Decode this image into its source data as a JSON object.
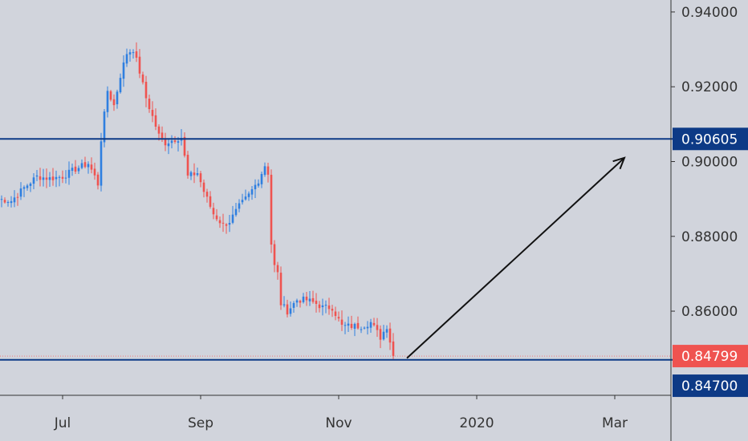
{
  "chart_data": {
    "type": "candlestick",
    "title": "",
    "x_ticks": [
      "Jul",
      "Sep",
      "Nov",
      "2020",
      "Mar"
    ],
    "y_ticks": [
      "0.94000",
      "0.92000",
      "0.90000",
      "0.88000",
      "0.86000"
    ],
    "ylim": [
      0.8375,
      0.9432
    ],
    "x_tick_candle_index": [
      20,
      63,
      106,
      149,
      192
    ],
    "grid": false,
    "colors": {
      "background": "#d1d4dc",
      "up": "#2f7fe0",
      "down": "#ef5350",
      "level_line": "#0d3a86",
      "current_price_line": "#ef7a78",
      "axis_text": "#333333",
      "arrow": "#111111"
    },
    "levels": [
      {
        "value": 0.90605,
        "label": "0.90605",
        "color": "#0d3a86"
      },
      {
        "value": 0.847,
        "label": "0.84700",
        "color": "#0d3a86"
      }
    ],
    "current_price": {
      "value": 0.84799,
      "label": "0.84799",
      "color": "#ef5350"
    },
    "arrow": {
      "from": {
        "candle_index": 126,
        "price": 0.847
      },
      "to": {
        "candle_index": 160,
        "price": 0.901
      }
    },
    "anchors": [
      [
        0,
        0.89
      ],
      [
        4,
        0.8895
      ],
      [
        8,
        0.893
      ],
      [
        12,
        0.896
      ],
      [
        16,
        0.8955
      ],
      [
        20,
        0.896
      ],
      [
        24,
        0.898
      ],
      [
        28,
        0.8995
      ],
      [
        30,
        0.896
      ],
      [
        31,
        0.894
      ],
      [
        32,
        0.906
      ],
      [
        34,
        0.919
      ],
      [
        36,
        0.915
      ],
      [
        38,
        0.923
      ],
      [
        40,
        0.929
      ],
      [
        42,
        0.93
      ],
      [
        44,
        0.924
      ],
      [
        46,
        0.917
      ],
      [
        48,
        0.912
      ],
      [
        50,
        0.907
      ],
      [
        52,
        0.905
      ],
      [
        55,
        0.906
      ],
      [
        57,
        0.9065
      ],
      [
        59,
        0.896
      ],
      [
        62,
        0.897
      ],
      [
        64,
        0.892
      ],
      [
        67,
        0.886
      ],
      [
        70,
        0.883
      ],
      [
        72,
        0.884
      ],
      [
        75,
        0.888
      ],
      [
        78,
        0.891
      ],
      [
        81,
        0.895
      ],
      [
        83,
        0.899
      ],
      [
        84,
        0.897
      ],
      [
        85,
        0.878
      ],
      [
        86,
        0.872
      ],
      [
        87,
        0.87
      ],
      [
        88,
        0.862
      ],
      [
        90,
        0.86
      ],
      [
        93,
        0.863
      ],
      [
        96,
        0.863
      ],
      [
        99,
        0.862
      ],
      [
        101,
        0.861
      ],
      [
        104,
        0.861
      ],
      [
        107,
        0.856
      ],
      [
        110,
        0.856
      ],
      [
        113,
        0.856
      ],
      [
        116,
        0.857
      ],
      [
        119,
        0.853
      ],
      [
        121,
        0.856
      ],
      [
        123,
        0.848
      ]
    ],
    "candle_count": 124,
    "seed": 7
  }
}
